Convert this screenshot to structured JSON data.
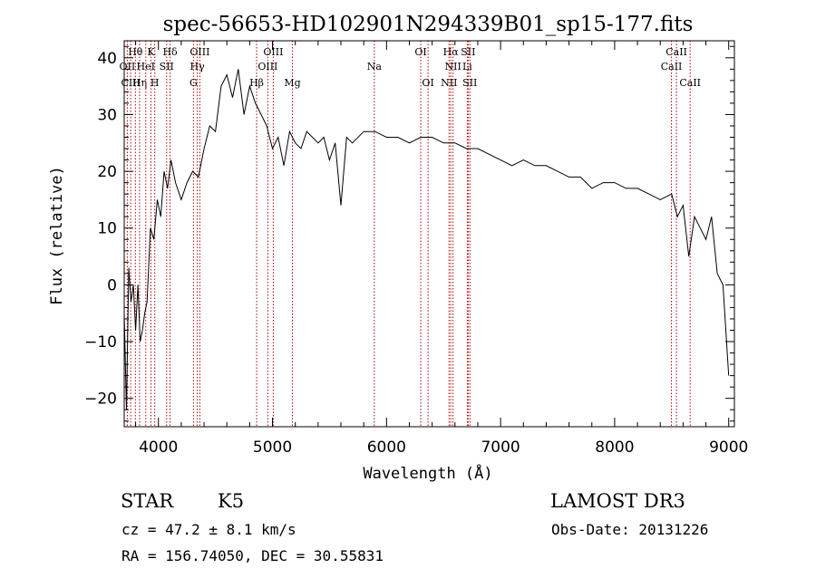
{
  "chart_data": {
    "type": "line",
    "title": "spec-56653-HD102901N294339B01_sp15-177.fits",
    "xlabel": "Wavelength (Å)",
    "ylabel": "Flux (relative)",
    "xlim": [
      3700,
      9050
    ],
    "ylim": [
      -25,
      43
    ],
    "xticks": [
      4000,
      5000,
      6000,
      7000,
      8000,
      9000
    ],
    "yticks": [
      -20,
      -10,
      0,
      10,
      20,
      30,
      40
    ],
    "x": [
      3700,
      3720,
      3740,
      3760,
      3780,
      3800,
      3820,
      3840,
      3860,
      3880,
      3900,
      3930,
      3960,
      3990,
      4020,
      4050,
      4080,
      4110,
      4150,
      4200,
      4250,
      4300,
      4350,
      4400,
      4450,
      4500,
      4550,
      4600,
      4650,
      4700,
      4750,
      4800,
      4850,
      4900,
      4950,
      5000,
      5050,
      5100,
      5150,
      5200,
      5250,
      5300,
      5350,
      5400,
      5450,
      5500,
      5550,
      5600,
      5650,
      5700,
      5800,
      5900,
      6000,
      6100,
      6200,
      6300,
      6400,
      6500,
      6600,
      6700,
      6800,
      6900,
      7000,
      7100,
      7200,
      7300,
      7400,
      7500,
      7600,
      7700,
      7800,
      7900,
      8000,
      8100,
      8200,
      8300,
      8400,
      8500,
      8550,
      8600,
      8650,
      8700,
      8750,
      8800,
      8850,
      8900,
      8950,
      9000
    ],
    "y": [
      -5,
      -22,
      3,
      -3,
      0,
      -8,
      0,
      -10,
      -8,
      -5,
      -3,
      10,
      8,
      15,
      12,
      20,
      17,
      22,
      18,
      15,
      18,
      20,
      19,
      24,
      28,
      27,
      35,
      37,
      33,
      38,
      30,
      35,
      32,
      30,
      28,
      24,
      26,
      21,
      27,
      25,
      24,
      27,
      26,
      25,
      26,
      22,
      25,
      14,
      26,
      25,
      27,
      27,
      26,
      26,
      25,
      26,
      26,
      25,
      25,
      24,
      24,
      23,
      22,
      21,
      22,
      21,
      21,
      20,
      19,
      19,
      17,
      18,
      18,
      17,
      17,
      16,
      15,
      16,
      12,
      14,
      5,
      12,
      10,
      8,
      12,
      2,
      0,
      -16
    ],
    "lines": [
      {
        "name": "Hθ",
        "wl": 3798,
        "row": 1
      },
      {
        "name": "OII",
        "wl": 3727,
        "row": 2
      },
      {
        "name": "CIII",
        "wl": 3757,
        "row": 3
      },
      {
        "name": "Hη",
        "wl": 3835,
        "row": 3
      },
      {
        "name": "K",
        "wl": 3934,
        "row": 1
      },
      {
        "name": "HeI",
        "wl": 3889,
        "row": 2
      },
      {
        "name": "H",
        "wl": 3968,
        "row": 3
      },
      {
        "name": "SII",
        "wl": 4072,
        "row": 2
      },
      {
        "name": "Hδ",
        "wl": 4102,
        "row": 1
      },
      {
        "name": "OIII",
        "wl": 4363,
        "row": 1
      },
      {
        "name": "Hγ",
        "wl": 4341,
        "row": 2
      },
      {
        "name": "G",
        "wl": 4307,
        "row": 3
      },
      {
        "name": "Hβ",
        "wl": 4861,
        "row": 3
      },
      {
        "name": "OIII",
        "wl": 5007,
        "row": 1
      },
      {
        "name": "OIII",
        "wl": 4959,
        "row": 2
      },
      {
        "name": "Mg",
        "wl": 5175,
        "row": 3
      },
      {
        "name": "Na",
        "wl": 5893,
        "row": 2
      },
      {
        "name": "OI",
        "wl": 6300,
        "row": 1
      },
      {
        "name": "OI",
        "wl": 6364,
        "row": 3
      },
      {
        "name": "Hα",
        "wl": 6563,
        "row": 1
      },
      {
        "name": "SII",
        "wl": 6716,
        "row": 1
      },
      {
        "name": "NII",
        "wl": 6583,
        "row": 2
      },
      {
        "name": "Li",
        "wl": 6708,
        "row": 2
      },
      {
        "name": "NII",
        "wl": 6548,
        "row": 3
      },
      {
        "name": "SII",
        "wl": 6731,
        "row": 3
      },
      {
        "name": "CaII",
        "wl": 8542,
        "row": 1
      },
      {
        "name": "CaII",
        "wl": 8498,
        "row": 2
      },
      {
        "name": "CaII",
        "wl": 8662,
        "row": 3
      }
    ],
    "grid": false,
    "line_color": "#000000",
    "marker_color": "#b30000"
  },
  "info": {
    "object_class": "STAR",
    "subclass": "K5",
    "survey": "LAMOST DR3",
    "cz": "cz = 47.2 ± 8.1 km/s",
    "obs_date": "Obs-Date: 20131226",
    "radec": "RA = 156.74050, DEC =  30.55831"
  }
}
